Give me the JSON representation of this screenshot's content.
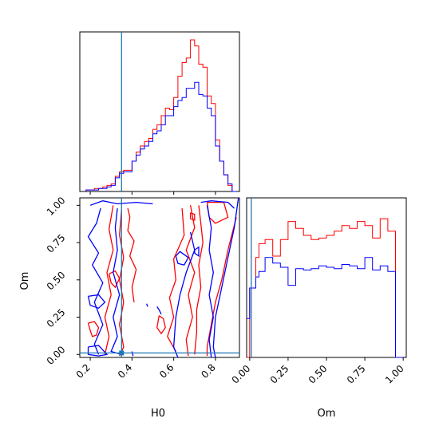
{
  "chart_data": [
    {
      "type": "histogram",
      "panel": "H0 marginal",
      "xlim": [
        0.15,
        0.915
      ],
      "truth_x": 0.35,
      "truth_color": "#1f77b4",
      "bin_edges": [
        0.18,
        0.2,
        0.22,
        0.24,
        0.26,
        0.28,
        0.3,
        0.32,
        0.34,
        0.36,
        0.38,
        0.4,
        0.42,
        0.44,
        0.46,
        0.48,
        0.5,
        0.52,
        0.54,
        0.56,
        0.58,
        0.6,
        0.62,
        0.64,
        0.66,
        0.68,
        0.7,
        0.72,
        0.74,
        0.76,
        0.78,
        0.8,
        0.82,
        0.84,
        0.86,
        0.88,
        0.9
      ],
      "series": [
        {
          "color": "#ff0000",
          "values": [
            0.01,
            0.01,
            0.02,
            0.02,
            0.03,
            0.04,
            0.05,
            0.1,
            0.13,
            0.14,
            0.14,
            0.2,
            0.26,
            0.3,
            0.33,
            0.35,
            0.41,
            0.44,
            0.5,
            0.55,
            0.54,
            0.62,
            0.76,
            0.85,
            0.88,
            1.0,
            0.96,
            0.84,
            0.82,
            0.63,
            0.58,
            0.34,
            0.2,
            0.11,
            0.04,
            0.0
          ]
        },
        {
          "color": "#0000ff",
          "values": [
            0.01,
            0.01,
            0.01,
            0.02,
            0.02,
            0.03,
            0.04,
            0.09,
            0.12,
            0.13,
            0.13,
            0.2,
            0.24,
            0.28,
            0.3,
            0.33,
            0.38,
            0.4,
            0.44,
            0.5,
            0.5,
            0.56,
            0.6,
            0.62,
            0.68,
            0.68,
            0.72,
            0.64,
            0.63,
            0.55,
            0.5,
            0.3,
            0.2,
            0.11,
            0.05,
            0.0
          ]
        }
      ],
      "xticks": [
        0.2,
        0.4,
        0.6,
        0.8
      ]
    },
    {
      "type": "contour",
      "panel": "H0 vs Om",
      "xlabel": "H0",
      "ylabel": "Om",
      "xlim": [
        0.15,
        0.915
      ],
      "ylim": [
        -0.02,
        1.05
      ],
      "xticks": [
        "0.2",
        "0.4",
        "0.6",
        "0.8"
      ],
      "yticks": [
        "0.00",
        "0.25",
        "0.50",
        "0.75",
        "1.00"
      ],
      "truth": {
        "x": 0.35,
        "y": 0.01,
        "color": "#1f77b4"
      },
      "series": [
        {
          "color": "#ff0000",
          "paths": [
            [
              [
                0.31,
                1.0
              ],
              [
                0.29,
                0.84
              ],
              [
                0.31,
                0.7
              ],
              [
                0.28,
                0.55
              ],
              [
                0.3,
                0.4
              ],
              [
                0.27,
                0.25
              ],
              [
                0.29,
                0.12
              ],
              [
                0.27,
                0.0
              ]
            ],
            [
              [
                0.35,
                0.97
              ],
              [
                0.34,
                0.8
              ],
              [
                0.36,
                0.65
              ],
              [
                0.34,
                0.5
              ],
              [
                0.36,
                0.35
              ],
              [
                0.34,
                0.2
              ],
              [
                0.36,
                0.05
              ],
              [
                0.34,
                -0.01
              ]
            ],
            [
              [
                0.38,
                0.98
              ],
              [
                0.39,
                0.92
              ],
              [
                0.38,
                0.83
              ],
              [
                0.41,
                0.76
              ],
              [
                0.39,
                0.66
              ],
              [
                0.42,
                0.57
              ],
              [
                0.4,
                0.45
              ],
              [
                0.41,
                0.35
              ]
            ],
            [
              [
                0.29,
                0.54
              ],
              [
                0.32,
                0.56
              ],
              [
                0.34,
                0.51
              ],
              [
                0.32,
                0.45
              ],
              [
                0.3,
                0.48
              ],
              [
                0.29,
                0.54
              ]
            ],
            [
              [
                0.19,
                0.21
              ],
              [
                0.22,
                0.22
              ],
              [
                0.24,
                0.18
              ],
              [
                0.23,
                0.13
              ],
              [
                0.21,
                0.12
              ],
              [
                0.2,
                0.16
              ],
              [
                0.19,
                0.21
              ]
            ],
            [
              [
                0.64,
                0.98
              ],
              [
                0.65,
                0.8
              ],
              [
                0.6,
                0.64
              ],
              [
                0.61,
                0.5
              ],
              [
                0.58,
                0.38
              ],
              [
                0.6,
                0.25
              ],
              [
                0.57,
                0.12
              ],
              [
                0.61,
                0.02
              ]
            ],
            [
              [
                0.68,
                1.0
              ],
              [
                0.7,
                0.85
              ],
              [
                0.66,
                0.7
              ],
              [
                0.7,
                0.55
              ],
              [
                0.67,
                0.4
              ],
              [
                0.69,
                0.25
              ],
              [
                0.66,
                0.1
              ],
              [
                0.67,
                -0.01
              ]
            ],
            [
              [
                0.72,
                1.0
              ],
              [
                0.73,
                0.88
              ],
              [
                0.74,
                0.75
              ],
              [
                0.72,
                0.6
              ],
              [
                0.73,
                0.45
              ],
              [
                0.71,
                0.3
              ],
              [
                0.71,
                0.15
              ],
              [
                0.7,
                0.0
              ]
            ],
            [
              [
                0.76,
                1.02
              ],
              [
                0.84,
                1.02
              ],
              [
                0.86,
                0.92
              ],
              [
                0.8,
                0.88
              ],
              [
                0.77,
                0.92
              ],
              [
                0.76,
                1.02
              ]
            ],
            [
              [
                0.9,
                0.92
              ],
              [
                0.86,
                0.7
              ],
              [
                0.83,
                0.5
              ],
              [
                0.8,
                0.35
              ],
              [
                0.78,
                0.2
              ],
              [
                0.76,
                0.05
              ],
              [
                0.76,
                -0.01
              ]
            ],
            [
              [
                0.68,
                0.95
              ],
              [
                0.7,
                0.94
              ],
              [
                0.7,
                0.9
              ],
              [
                0.68,
                0.91
              ],
              [
                0.68,
                0.95
              ]
            ],
            [
              [
                0.53,
                0.26
              ],
              [
                0.55,
                0.24
              ],
              [
                0.56,
                0.18
              ],
              [
                0.54,
                0.14
              ],
              [
                0.52,
                0.18
              ],
              [
                0.53,
                0.26
              ]
            ]
          ]
        },
        {
          "color": "#0000ff",
          "paths": [
            [
              [
                0.2,
                1.0
              ],
              [
                0.26,
                1.03
              ],
              [
                0.33,
                1.01
              ],
              [
                0.42,
                1.02
              ],
              [
                0.5,
                1.01
              ]
            ],
            [
              [
                0.25,
                0.98
              ],
              [
                0.23,
                0.88
              ],
              [
                0.19,
                0.79
              ],
              [
                0.24,
                0.68
              ],
              [
                0.21,
                0.6
              ],
              [
                0.26,
                0.48
              ],
              [
                0.22,
                0.35
              ],
              [
                0.26,
                0.2
              ],
              [
                0.22,
                0.07
              ],
              [
                0.24,
                0.0
              ]
            ],
            [
              [
                0.33,
                0.98
              ],
              [
                0.32,
                0.85
              ],
              [
                0.33,
                0.7
              ],
              [
                0.31,
                0.55
              ],
              [
                0.34,
                0.4
              ],
              [
                0.31,
                0.25
              ],
              [
                0.33,
                0.12
              ],
              [
                0.3,
                0.02
              ],
              [
                0.35,
                0.0
              ]
            ],
            [
              [
                0.19,
                0.39
              ],
              [
                0.24,
                0.4
              ],
              [
                0.27,
                0.35
              ],
              [
                0.24,
                0.31
              ],
              [
                0.2,
                0.33
              ],
              [
                0.19,
                0.39
              ]
            ],
            [
              [
                0.19,
                0.05
              ],
              [
                0.24,
                0.06
              ],
              [
                0.28,
                0.0
              ],
              [
                0.24,
                -0.01
              ],
              [
                0.19,
                0.0
              ],
              [
                0.19,
                0.05
              ]
            ],
            [
              [
                0.73,
                1.02
              ],
              [
                0.78,
                1.03
              ],
              [
                0.86,
                1.02
              ],
              [
                0.89,
                0.98
              ]
            ],
            [
              [
                0.61,
                0.66
              ],
              [
                0.63,
                0.69
              ],
              [
                0.67,
                0.65
              ],
              [
                0.65,
                0.6
              ],
              [
                0.62,
                0.61
              ],
              [
                0.61,
                0.66
              ]
            ],
            [
              [
                0.7,
                0.7
              ],
              [
                0.72,
                0.72
              ],
              [
                0.72,
                0.66
              ],
              [
                0.7,
                0.68
              ],
              [
                0.7,
                0.7
              ]
            ],
            [
              [
                0.68,
                0.82
              ],
              [
                0.7,
                0.7
              ],
              [
                0.66,
                0.55
              ],
              [
                0.63,
                0.4
              ],
              [
                0.61,
                0.25
              ],
              [
                0.6,
                0.05
              ],
              [
                0.62,
                -0.02
              ]
            ],
            [
              [
                0.76,
                1.0
              ],
              [
                0.78,
                0.85
              ],
              [
                0.77,
                0.7
              ],
              [
                0.79,
                0.55
              ],
              [
                0.77,
                0.4
              ],
              [
                0.79,
                0.25
              ],
              [
                0.77,
                0.1
              ],
              [
                0.78,
                -0.02
              ]
            ],
            [
              [
                0.91,
                1.05
              ],
              [
                0.89,
                0.85
              ],
              [
                0.86,
                0.65
              ],
              [
                0.83,
                0.45
              ],
              [
                0.8,
                0.25
              ],
              [
                0.79,
                0.05
              ],
              [
                0.8,
                -0.02
              ]
            ],
            [
              [
                0.52,
                0.32
              ],
              [
                0.53,
                0.3
              ],
              [
                0.54,
                0.27
              ]
            ],
            [
              [
                0.47,
                0.34
              ],
              [
                0.475,
                0.32
              ]
            ],
            [
              [
                0.4,
                0.02
              ],
              [
                0.405,
                -0.01
              ]
            ]
          ]
        }
      ]
    },
    {
      "type": "histogram",
      "panel": "Om marginal",
      "xlabel": "Om",
      "xlim": [
        -0.02,
        1.02
      ],
      "ylim": [
        0,
        1.15
      ],
      "xticks": [
        "0.00",
        "0.25",
        "0.50",
        "0.75",
        "1.00"
      ],
      "truth_x": 0.01,
      "truth_color": "#1f77b4",
      "bin_edges": [
        -0.02,
        0.0,
        0.02,
        0.04,
        0.06,
        0.08,
        0.1,
        0.15,
        0.2,
        0.25,
        0.3,
        0.35,
        0.4,
        0.45,
        0.5,
        0.55,
        0.6,
        0.65,
        0.7,
        0.75,
        0.8,
        0.85,
        0.9,
        0.95,
        1.0
      ],
      "series": [
        {
          "color": "#ff0000",
          "values": [
            0.0,
            0.5,
            0.5,
            0.72,
            0.82,
            0.82,
            0.85,
            0.73,
            0.85,
            0.98,
            0.93,
            0.88,
            0.85,
            0.86,
            0.88,
            0.91,
            0.95,
            0.93,
            0.98,
            0.95,
            0.86,
            1.0,
            0.91,
            0.0
          ]
        },
        {
          "color": "#0000ff",
          "values": [
            0.28,
            0.5,
            0.5,
            0.58,
            0.62,
            0.62,
            0.72,
            0.68,
            0.65,
            0.52,
            0.64,
            0.63,
            0.64,
            0.66,
            0.65,
            0.64,
            0.67,
            0.66,
            0.64,
            0.72,
            0.63,
            0.66,
            0.62,
            0.0
          ]
        }
      ]
    }
  ]
}
